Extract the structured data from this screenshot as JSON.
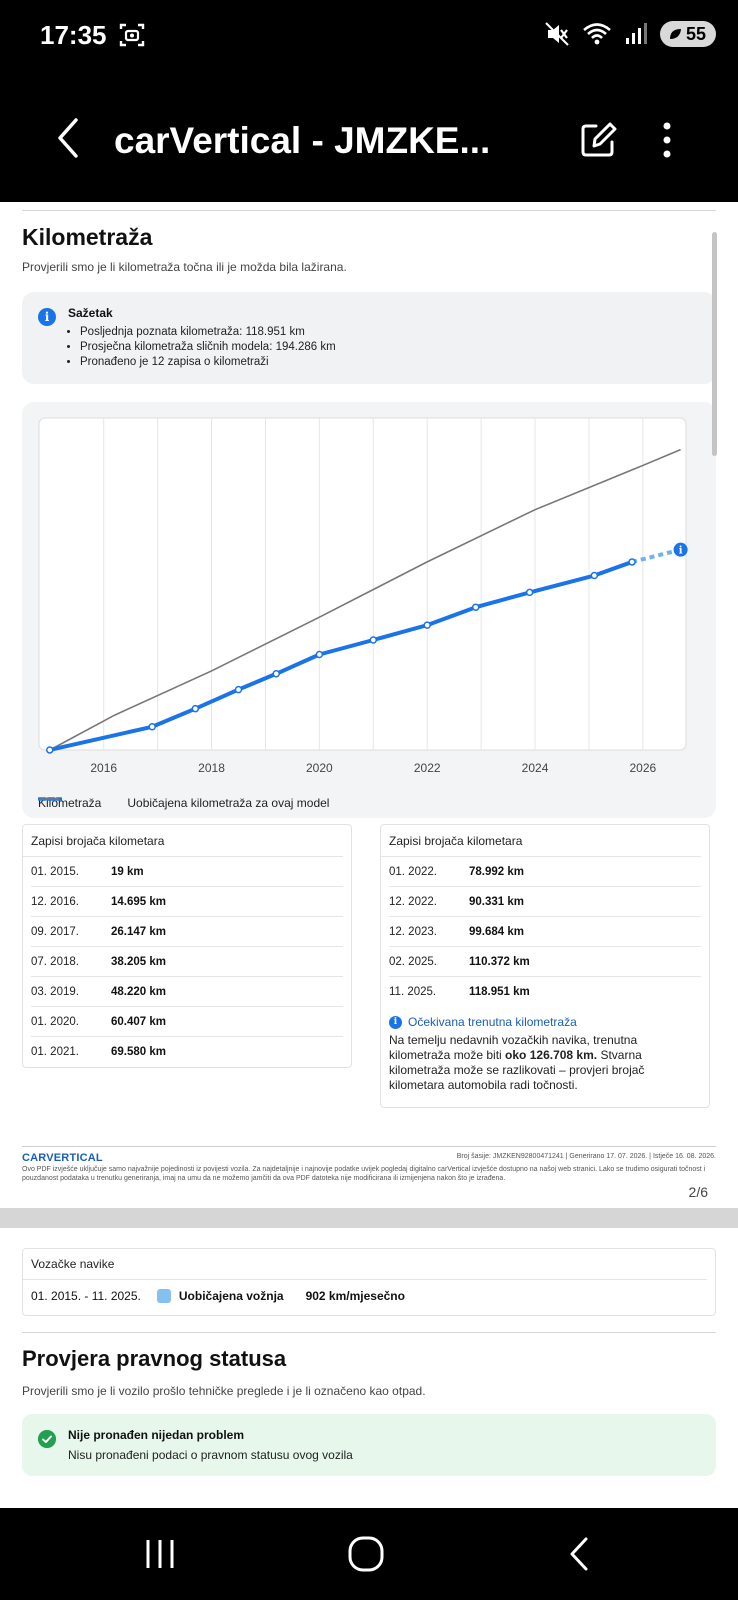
{
  "status_bar": {
    "time": "17:35",
    "battery": "55"
  },
  "app_bar": {
    "title": "carVertical - JMZKE..."
  },
  "mileage": {
    "title": "Kilometraža",
    "subtitle": "Provjerili smo je li kilometraža točna ili je možda bila lažirana.",
    "summary_title": "Sažetak",
    "summary_items": [
      "Posljednja poznata kilometraža: 118.951 km",
      "Prosječna kilometraža sličnih modela: 194.286 km",
      "Pronađeno je 12 zapisa o kilometraži"
    ]
  },
  "chart_data": {
    "type": "line",
    "xlim": [
      2014.8,
      2026.8
    ],
    "ylim": [
      0,
      210000
    ],
    "x_ticks": [
      "2016",
      "2018",
      "2020",
      "2022",
      "2024",
      "2026"
    ],
    "series": [
      {
        "name": "Kilometraža",
        "color": "#1a73e8",
        "points": [
          [
            2015.0,
            19
          ],
          [
            2016.9,
            14695
          ],
          [
            2017.7,
            26147
          ],
          [
            2018.5,
            38205
          ],
          [
            2019.2,
            48220
          ],
          [
            2020.0,
            60407
          ],
          [
            2021.0,
            69580
          ],
          [
            2022.0,
            78992
          ],
          [
            2022.9,
            90331
          ],
          [
            2023.9,
            99684
          ],
          [
            2025.1,
            110372
          ],
          [
            2025.8,
            118951
          ]
        ],
        "projected": [
          [
            2025.8,
            118951
          ],
          [
            2026.7,
            126708
          ]
        ]
      },
      {
        "name": "Uobičajena kilometraža za ovaj model",
        "color": "#777777",
        "points": [
          [
            2015.0,
            0
          ],
          [
            2016.2,
            22000
          ],
          [
            2018.0,
            50000
          ],
          [
            2020.0,
            84000
          ],
          [
            2022.0,
            119000
          ],
          [
            2024.0,
            152000
          ],
          [
            2026.0,
            180000
          ],
          [
            2026.7,
            190000
          ]
        ]
      }
    ]
  },
  "records_left": {
    "header": "Zapisi brojača kilometara",
    "rows": [
      {
        "date": "01. 2015.",
        "km": "19 km"
      },
      {
        "date": "12. 2016.",
        "km": "14.695 km"
      },
      {
        "date": "09. 2017.",
        "km": "26.147 km"
      },
      {
        "date": "07. 2018.",
        "km": "38.205 km"
      },
      {
        "date": "03. 2019.",
        "km": "48.220 km"
      },
      {
        "date": "01. 2020.",
        "km": "60.407 km"
      },
      {
        "date": "01. 2021.",
        "km": "69.580 km"
      }
    ]
  },
  "records_right": {
    "header": "Zapisi brojača kilometara",
    "rows": [
      {
        "date": "01. 2022.",
        "km": "78.992 km"
      },
      {
        "date": "12. 2022.",
        "km": "90.331 km"
      },
      {
        "date": "12. 2023.",
        "km": "99.684 km"
      },
      {
        "date": "02. 2025.",
        "km": "110.372 km"
      },
      {
        "date": "11. 2025.",
        "km": "118.951 km"
      }
    ],
    "expected_title": "Očekivana trenutna kilometraža",
    "expected_text_1": "Na temelju nedavnih vozačkih navika, trenutna kilometraža može biti ",
    "expected_value": "oko 126.708 km.",
    "expected_text_2": " Stvarna kilometraža može se razlikovati – provjeri brojač kilometara automobila radi točnosti."
  },
  "footer": {
    "brand": "CARVERTICAL",
    "meta": "Broj šasije:  JMZKEN92800471241   |   Generirano  17. 07. 2026.   |   Istječe  16. 08. 2026.",
    "note": "Ovo PDF izvješće uključuje samo najvažnije pojedinosti iz povijesti vozila. Za najdetaljnije i najnovije podatke uvijek pogledaj digitalno carVertical izvješće dostupno na našoj web stranici. Lako se trudimo osigurati točnost i pouzdanost podataka u trenutku generiranja, imaj na umu da ne možemo jamčiti da ova PDF datoteka nije modificirana ili izmijenjena nakon što je izrađena.",
    "page": "2/6"
  },
  "driving_habits": {
    "header": "Vozačke navike",
    "period": "01. 2015. - 11. 2025.",
    "type": "Uobičajena vožnja",
    "value": "902 km/mjesečno"
  },
  "legal": {
    "title": "Provjera pravnog statusa",
    "subtitle": "Provjerili smo je li vozilo prošlo tehničke preglede i je li označeno kao otpad.",
    "ok_title": "Nije pronađen nijedan problem",
    "ok_text": "Nisu pronađeni podaci o pravnom statusu ovog vozila"
  }
}
